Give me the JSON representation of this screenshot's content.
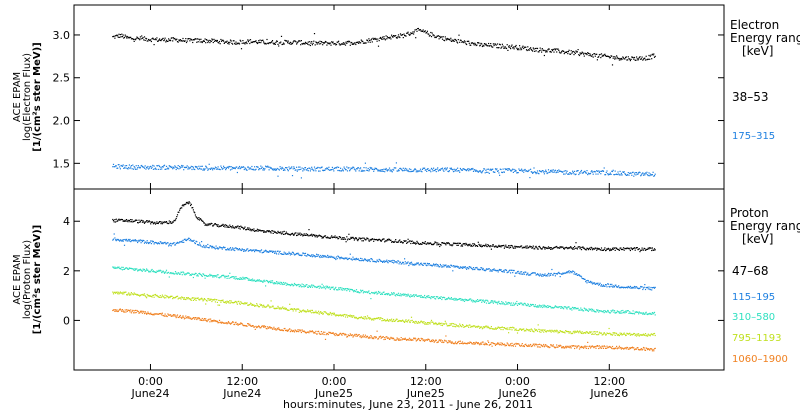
{
  "chart_data": [
    {
      "type": "scatter",
      "panel": "electron",
      "ylabel": [
        "ACE EPAM",
        "log(Electron Flux)",
        "[1/(cm²s ster MeV)]"
      ],
      "ylim": [
        1.2,
        3.35
      ],
      "yticks": [
        1.5,
        2.0,
        2.5,
        3.0
      ],
      "ytick_labels": [
        "1.5",
        "2.0",
        "2.5",
        "3.0"
      ],
      "legend_title": [
        "Electron",
        "Energy ranges",
        "[keV]"
      ],
      "series": [
        {
          "name": "38–53",
          "color": "#000000",
          "x": [
            0,
            1,
            2,
            4,
            6,
            8,
            10,
            12,
            14,
            16,
            18,
            20,
            22,
            24,
            26,
            28,
            30,
            32,
            34,
            36,
            38,
            40,
            41,
            42,
            44,
            46,
            48,
            50,
            52,
            54,
            56,
            58,
            60,
            62,
            64,
            66,
            68,
            70,
            71
          ],
          "y": [
            2.98,
            3.0,
            2.97,
            2.96,
            2.95,
            2.95,
            2.94,
            2.94,
            2.93,
            2.92,
            2.93,
            2.92,
            2.92,
            2.92,
            2.91,
            2.91,
            2.91,
            2.92,
            2.95,
            2.98,
            3.0,
            3.06,
            3.03,
            3.0,
            2.95,
            2.92,
            2.89,
            2.88,
            2.87,
            2.85,
            2.83,
            2.82,
            2.8,
            2.78,
            2.76,
            2.74,
            2.73,
            2.74,
            2.77
          ]
        },
        {
          "name": "175–315",
          "color": "#1f80e0",
          "x": [
            0,
            4,
            8,
            12,
            16,
            20,
            24,
            28,
            32,
            36,
            40,
            44,
            48,
            52,
            56,
            60,
            64,
            68,
            71
          ],
          "y": [
            1.47,
            1.46,
            1.46,
            1.45,
            1.45,
            1.45,
            1.44,
            1.44,
            1.44,
            1.43,
            1.43,
            1.43,
            1.42,
            1.42,
            1.41,
            1.4,
            1.4,
            1.38,
            1.38
          ]
        }
      ]
    },
    {
      "type": "scatter",
      "panel": "proton",
      "ylabel": [
        "ACE EPAM",
        "log(Proton Flux)",
        "[1/(cm²s ster MeV)]"
      ],
      "ylim": [
        -2.0,
        5.3
      ],
      "yticks": [
        0,
        2,
        4
      ],
      "ytick_labels": [
        "0",
        "2",
        "4"
      ],
      "legend_title": [
        "Proton",
        "Energy ranges",
        "[keV]"
      ],
      "series": [
        {
          "name": "47–68",
          "color": "#000000",
          "x": [
            0,
            2,
            4,
            6,
            8,
            9,
            10,
            11,
            12,
            14,
            16,
            18,
            20,
            24,
            28,
            32,
            36,
            40,
            44,
            48,
            52,
            56,
            60,
            64,
            68,
            71
          ],
          "y": [
            4.05,
            4.05,
            4.0,
            3.95,
            4.0,
            4.6,
            4.8,
            4.2,
            3.9,
            3.85,
            3.8,
            3.7,
            3.6,
            3.5,
            3.4,
            3.3,
            3.25,
            3.15,
            3.1,
            3.05,
            3.0,
            2.95,
            2.95,
            2.9,
            2.9,
            2.9
          ]
        },
        {
          "name": "115–195",
          "color": "#1f80e0",
          "x": [
            0,
            4,
            8,
            10,
            12,
            16,
            20,
            24,
            28,
            32,
            36,
            40,
            44,
            48,
            52,
            56,
            58,
            60,
            62,
            64,
            68,
            71
          ],
          "y": [
            3.3,
            3.2,
            3.1,
            3.3,
            3.0,
            2.9,
            2.8,
            2.7,
            2.6,
            2.5,
            2.4,
            2.3,
            2.2,
            2.1,
            2.0,
            1.85,
            1.9,
            2.0,
            1.6,
            1.45,
            1.35,
            1.3
          ]
        },
        {
          "name": "310–580",
          "color": "#30e0c0",
          "x": [
            0,
            4,
            8,
            12,
            16,
            20,
            24,
            28,
            32,
            36,
            40,
            44,
            48,
            52,
            56,
            60,
            64,
            68,
            71
          ],
          "y": [
            2.15,
            2.05,
            1.95,
            1.85,
            1.75,
            1.6,
            1.45,
            1.35,
            1.2,
            1.1,
            1.0,
            0.9,
            0.8,
            0.7,
            0.6,
            0.5,
            0.4,
            0.35,
            0.3
          ]
        },
        {
          "name": "795–1193",
          "color": "#c0e020",
          "x": [
            0,
            4,
            8,
            12,
            16,
            20,
            24,
            28,
            32,
            36,
            40,
            44,
            48,
            52,
            56,
            60,
            64,
            68,
            71
          ],
          "y": [
            1.15,
            1.05,
            0.95,
            0.85,
            0.75,
            0.6,
            0.45,
            0.3,
            0.15,
            0.05,
            -0.05,
            -0.15,
            -0.25,
            -0.3,
            -0.4,
            -0.45,
            -0.5,
            -0.55,
            -0.55
          ]
        },
        {
          "name": "1060–1900",
          "color": "#f08020",
          "x": [
            0,
            4,
            8,
            12,
            16,
            20,
            24,
            28,
            32,
            36,
            40,
            44,
            48,
            52,
            56,
            60,
            64,
            68,
            71
          ],
          "y": [
            0.45,
            0.35,
            0.2,
            0.05,
            -0.1,
            -0.25,
            -0.4,
            -0.5,
            -0.6,
            -0.7,
            -0.75,
            -0.85,
            -0.9,
            -0.95,
            -1.0,
            -1.05,
            -1.05,
            -1.1,
            -1.15
          ]
        }
      ]
    }
  ],
  "x_axis": {
    "xlim": [
      -5,
      80
    ],
    "tick_hours": [
      5,
      17,
      29,
      41,
      53,
      65
    ],
    "tick_labels": [
      [
        "0:00",
        "June24"
      ],
      [
        "12:00",
        "June24"
      ],
      [
        "0:00",
        "June25"
      ],
      [
        "12:00",
        "June25"
      ],
      [
        "0:00",
        "June26"
      ],
      [
        "12:00",
        "June26"
      ]
    ],
    "xlabel": "hours:minutes, June 23, 2011 - June 26, 2011"
  }
}
